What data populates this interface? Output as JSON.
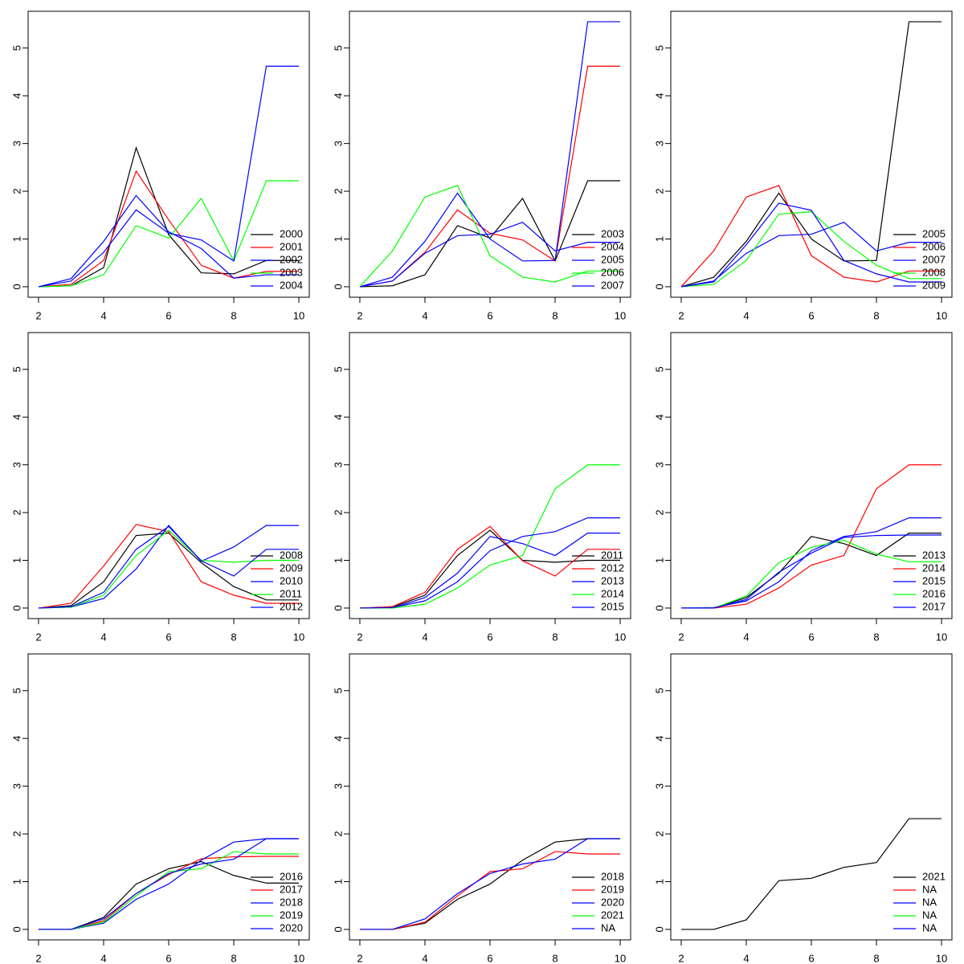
{
  "chart_data": [
    {
      "type": "line",
      "x": [
        2,
        3,
        4,
        5,
        6,
        7,
        8,
        9,
        10
      ],
      "xlim": [
        1.68,
        10.32
      ],
      "ylim": [
        -0.22,
        5.77
      ],
      "xticks": [
        2,
        4,
        6,
        8,
        10
      ],
      "yticks": [
        0,
        1,
        2,
        3,
        4,
        5
      ],
      "legend": "bottomright",
      "series": [
        {
          "name": "2000",
          "color": "#000000",
          "values": [
            0,
            0.02,
            0.4,
            2.91,
            1.09,
            0.29,
            0.27,
            0.55,
            0.55
          ]
        },
        {
          "name": "2001",
          "color": "#ff0000",
          "values": [
            0,
            0.05,
            0.55,
            2.42,
            1.4,
            0.45,
            0.18,
            0.32,
            0.32
          ]
        },
        {
          "name": "2002",
          "color": "#0000ff",
          "values": [
            0,
            0.17,
            0.95,
            1.91,
            1.15,
            0.8,
            0.18,
            0.25,
            0.25
          ]
        },
        {
          "name": "2003",
          "color": "#00ff00",
          "values": [
            0,
            0.02,
            0.25,
            1.28,
            1.02,
            1.85,
            0.54,
            2.22,
            2.22
          ]
        },
        {
          "name": "2004",
          "color": "#0000ff",
          "values": [
            0,
            0.12,
            0.72,
            1.61,
            1.12,
            0.98,
            0.54,
            4.62,
            4.62
          ]
        }
      ]
    },
    {
      "type": "line",
      "x": [
        2,
        3,
        4,
        5,
        6,
        7,
        8,
        9,
        10
      ],
      "xlim": [
        1.68,
        10.32
      ],
      "ylim": [
        -0.22,
        5.77
      ],
      "xticks": [
        2,
        4,
        6,
        8,
        10
      ],
      "yticks": [
        0,
        1,
        2,
        3,
        4,
        5
      ],
      "legend": "bottomright",
      "series": [
        {
          "name": "2003",
          "color": "#000000",
          "values": [
            0,
            0.02,
            0.25,
            1.28,
            1.02,
            1.85,
            0.54,
            2.22,
            2.22
          ]
        },
        {
          "name": "2004",
          "color": "#ff0000",
          "values": [
            0,
            0.12,
            0.72,
            1.61,
            1.12,
            0.98,
            0.54,
            4.62,
            4.62
          ]
        },
        {
          "name": "2005",
          "color": "#0000ff",
          "values": [
            0,
            0.2,
            0.95,
            1.96,
            1.0,
            0.54,
            0.55,
            5.55,
            5.55
          ]
        },
        {
          "name": "2006",
          "color": "#00ff00",
          "values": [
            0,
            0.75,
            1.88,
            2.12,
            0.65,
            0.2,
            0.1,
            0.33,
            0.33
          ]
        },
        {
          "name": "2007",
          "color": "#0000ff",
          "values": [
            0,
            0.12,
            0.7,
            1.07,
            1.1,
            1.35,
            0.75,
            0.93,
            0.93
          ]
        }
      ]
    },
    {
      "type": "line",
      "x": [
        2,
        3,
        4,
        5,
        6,
        7,
        8,
        9,
        10
      ],
      "xlim": [
        1.68,
        10.32
      ],
      "ylim": [
        -0.22,
        5.77
      ],
      "xticks": [
        2,
        4,
        6,
        8,
        10
      ],
      "yticks": [
        0,
        1,
        2,
        3,
        4,
        5
      ],
      "legend": "bottomright",
      "series": [
        {
          "name": "2005",
          "color": "#000000",
          "values": [
            0,
            0.2,
            0.95,
            1.96,
            1.0,
            0.54,
            0.55,
            5.55,
            5.55
          ]
        },
        {
          "name": "2006",
          "color": "#ff0000",
          "values": [
            0,
            0.75,
            1.88,
            2.12,
            0.65,
            0.2,
            0.1,
            0.33,
            0.33
          ]
        },
        {
          "name": "2007",
          "color": "#0000ff",
          "values": [
            0,
            0.12,
            0.7,
            1.07,
            1.1,
            1.35,
            0.75,
            0.93,
            0.93
          ]
        },
        {
          "name": "2008",
          "color": "#00ff00",
          "values": [
            0,
            0.05,
            0.55,
            1.52,
            1.57,
            0.95,
            0.45,
            0.17,
            0.17
          ]
        },
        {
          "name": "2009",
          "color": "#0000ff",
          "values": [
            0,
            0.1,
            0.88,
            1.75,
            1.6,
            0.55,
            0.27,
            0.1,
            0.1
          ]
        }
      ]
    },
    {
      "type": "line",
      "x": [
        2,
        3,
        4,
        5,
        6,
        7,
        8,
        9,
        10
      ],
      "xlim": [
        1.68,
        10.32
      ],
      "ylim": [
        -0.22,
        5.77
      ],
      "xticks": [
        2,
        4,
        6,
        8,
        10
      ],
      "yticks": [
        0,
        1,
        2,
        3,
        4,
        5
      ],
      "legend": "bottomright",
      "series": [
        {
          "name": "2008",
          "color": "#000000",
          "values": [
            0,
            0.05,
            0.55,
            1.52,
            1.57,
            0.95,
            0.45,
            0.17,
            0.17
          ]
        },
        {
          "name": "2009",
          "color": "#ff0000",
          "values": [
            0,
            0.1,
            0.88,
            1.75,
            1.6,
            0.55,
            0.27,
            0.1,
            0.1
          ]
        },
        {
          "name": "2010",
          "color": "#0000ff",
          "values": [
            0,
            0.02,
            0.2,
            0.82,
            1.73,
            0.98,
            1.28,
            1.73,
            1.73
          ]
        },
        {
          "name": "2011",
          "color": "#00ff00",
          "values": [
            0,
            0.02,
            0.27,
            1.1,
            1.63,
            1.0,
            0.96,
            1.0,
            1.0
          ]
        },
        {
          "name": "2012",
          "color": "#0000ff",
          "values": [
            0,
            0.03,
            0.33,
            1.23,
            1.71,
            0.99,
            0.67,
            1.23,
            1.23
          ]
        }
      ]
    },
    {
      "type": "line",
      "x": [
        2,
        3,
        4,
        5,
        6,
        7,
        8,
        9,
        10
      ],
      "xlim": [
        1.68,
        10.32
      ],
      "ylim": [
        -0.22,
        5.77
      ],
      "xticks": [
        2,
        4,
        6,
        8,
        10
      ],
      "yticks": [
        0,
        1,
        2,
        3,
        4,
        5
      ],
      "legend": "bottomright",
      "series": [
        {
          "name": "2011",
          "color": "#000000",
          "values": [
            0,
            0.02,
            0.27,
            1.1,
            1.63,
            1.0,
            0.96,
            1.0,
            1.0
          ]
        },
        {
          "name": "2012",
          "color": "#ff0000",
          "values": [
            0,
            0.03,
            0.33,
            1.23,
            1.71,
            0.99,
            0.67,
            1.23,
            1.23
          ]
        },
        {
          "name": "2013",
          "color": "#0000ff",
          "values": [
            0,
            0,
            0.22,
            0.73,
            1.5,
            1.35,
            1.1,
            1.57,
            1.57
          ]
        },
        {
          "name": "2014",
          "color": "#00ff00",
          "values": [
            0,
            0,
            0.08,
            0.42,
            0.9,
            1.1,
            2.5,
            3.0,
            3.0
          ]
        },
        {
          "name": "2015",
          "color": "#0000ff",
          "values": [
            0,
            0.01,
            0.15,
            0.55,
            1.2,
            1.5,
            1.6,
            1.89,
            1.89
          ]
        }
      ]
    },
    {
      "type": "line",
      "x": [
        2,
        3,
        4,
        5,
        6,
        7,
        8,
        9,
        10
      ],
      "xlim": [
        1.68,
        10.32
      ],
      "ylim": [
        -0.22,
        5.77
      ],
      "xticks": [
        2,
        4,
        6,
        8,
        10
      ],
      "yticks": [
        0,
        1,
        2,
        3,
        4,
        5
      ],
      "legend": "bottomright",
      "series": [
        {
          "name": "2013",
          "color": "#000000",
          "values": [
            0,
            0,
            0.22,
            0.73,
            1.5,
            1.35,
            1.1,
            1.57,
            1.57
          ]
        },
        {
          "name": "2014",
          "color": "#ff0000",
          "values": [
            0,
            0,
            0.08,
            0.42,
            0.9,
            1.1,
            2.5,
            3.0,
            3.0
          ]
        },
        {
          "name": "2015",
          "color": "#0000ff",
          "values": [
            0,
            0.01,
            0.15,
            0.55,
            1.2,
            1.5,
            1.6,
            1.89,
            1.89
          ]
        },
        {
          "name": "2016",
          "color": "#00ff00",
          "values": [
            0,
            0,
            0.25,
            0.95,
            1.27,
            1.42,
            1.13,
            0.97,
            0.97
          ]
        },
        {
          "name": "2017",
          "color": "#0000ff",
          "values": [
            0,
            0,
            0.18,
            0.75,
            1.15,
            1.48,
            1.52,
            1.53,
            1.53
          ]
        }
      ]
    },
    {
      "type": "line",
      "x": [
        2,
        3,
        4,
        5,
        6,
        7,
        8,
        9,
        10
      ],
      "xlim": [
        1.68,
        10.32
      ],
      "ylim": [
        -0.22,
        5.77
      ],
      "xticks": [
        2,
        4,
        6,
        8,
        10
      ],
      "yticks": [
        0,
        1,
        2,
        3,
        4,
        5
      ],
      "legend": "bottomright",
      "series": [
        {
          "name": "2016",
          "color": "#000000",
          "values": [
            0,
            0,
            0.25,
            0.95,
            1.27,
            1.42,
            1.13,
            0.97,
            0.97
          ]
        },
        {
          "name": "2017",
          "color": "#ff0000",
          "values": [
            0,
            0,
            0.18,
            0.75,
            1.15,
            1.48,
            1.52,
            1.53,
            1.53
          ]
        },
        {
          "name": "2018",
          "color": "#0000ff",
          "values": [
            0,
            0,
            0.13,
            0.63,
            0.95,
            1.45,
            1.83,
            1.9,
            1.9
          ]
        },
        {
          "name": "2019",
          "color": "#00ff00",
          "values": [
            0,
            0,
            0.15,
            0.7,
            1.21,
            1.27,
            1.63,
            1.58,
            1.58
          ]
        },
        {
          "name": "2020",
          "color": "#0000ff",
          "values": [
            0,
            0,
            0.22,
            0.75,
            1.17,
            1.37,
            1.47,
            1.9,
            1.9
          ]
        }
      ]
    },
    {
      "type": "line",
      "x": [
        2,
        3,
        4,
        5,
        6,
        7,
        8,
        9,
        10
      ],
      "xlim": [
        1.68,
        10.32
      ],
      "ylim": [
        -0.22,
        5.77
      ],
      "xticks": [
        2,
        4,
        6,
        8,
        10
      ],
      "yticks": [
        0,
        1,
        2,
        3,
        4,
        5
      ],
      "legend": "bottomright",
      "series": [
        {
          "name": "2018",
          "color": "#000000",
          "values": [
            0,
            0,
            0.13,
            0.63,
            0.95,
            1.45,
            1.83,
            1.9,
            1.9
          ]
        },
        {
          "name": "2019",
          "color": "#ff0000",
          "values": [
            0,
            0,
            0.15,
            0.7,
            1.21,
            1.27,
            1.63,
            1.58,
            1.58
          ]
        },
        {
          "name": "2020",
          "color": "#0000ff",
          "values": [
            0,
            0,
            0.22,
            0.75,
            1.17,
            1.37,
            1.47,
            1.9,
            1.9
          ]
        },
        {
          "name": "2021",
          "color": "#00ff00",
          "values": [
            null,
            null,
            null,
            null,
            null,
            null,
            null,
            null,
            null
          ]
        },
        {
          "name": "NA",
          "color": "#0000ff",
          "values": [
            null,
            null,
            null,
            null,
            null,
            null,
            null,
            null,
            null
          ]
        }
      ]
    },
    {
      "type": "line",
      "x": [
        2,
        3,
        4,
        5,
        6,
        7,
        8,
        9,
        10
      ],
      "xlim": [
        1.68,
        10.32
      ],
      "ylim": [
        -0.22,
        5.77
      ],
      "xticks": [
        2,
        4,
        6,
        8,
        10
      ],
      "yticks": [
        0,
        1,
        2,
        3,
        4,
        5
      ],
      "legend": "bottomright",
      "series": [
        {
          "name": "2021",
          "color": "#000000",
          "values": [
            0,
            0,
            0.2,
            1.02,
            1.07,
            1.3,
            1.4,
            2.32,
            2.32
          ]
        },
        {
          "name": "NA",
          "color": "#ff0000",
          "values": [
            null,
            null,
            null,
            null,
            null,
            null,
            null,
            null,
            null
          ]
        },
        {
          "name": "NA",
          "color": "#0000ff",
          "values": [
            null,
            null,
            null,
            null,
            null,
            null,
            null,
            null,
            null
          ]
        },
        {
          "name": "NA",
          "color": "#00ff00",
          "values": [
            null,
            null,
            null,
            null,
            null,
            null,
            null,
            null,
            null
          ]
        },
        {
          "name": "NA",
          "color": "#0000ff",
          "values": [
            null,
            null,
            null,
            null,
            null,
            null,
            null,
            null,
            null
          ]
        }
      ]
    }
  ]
}
